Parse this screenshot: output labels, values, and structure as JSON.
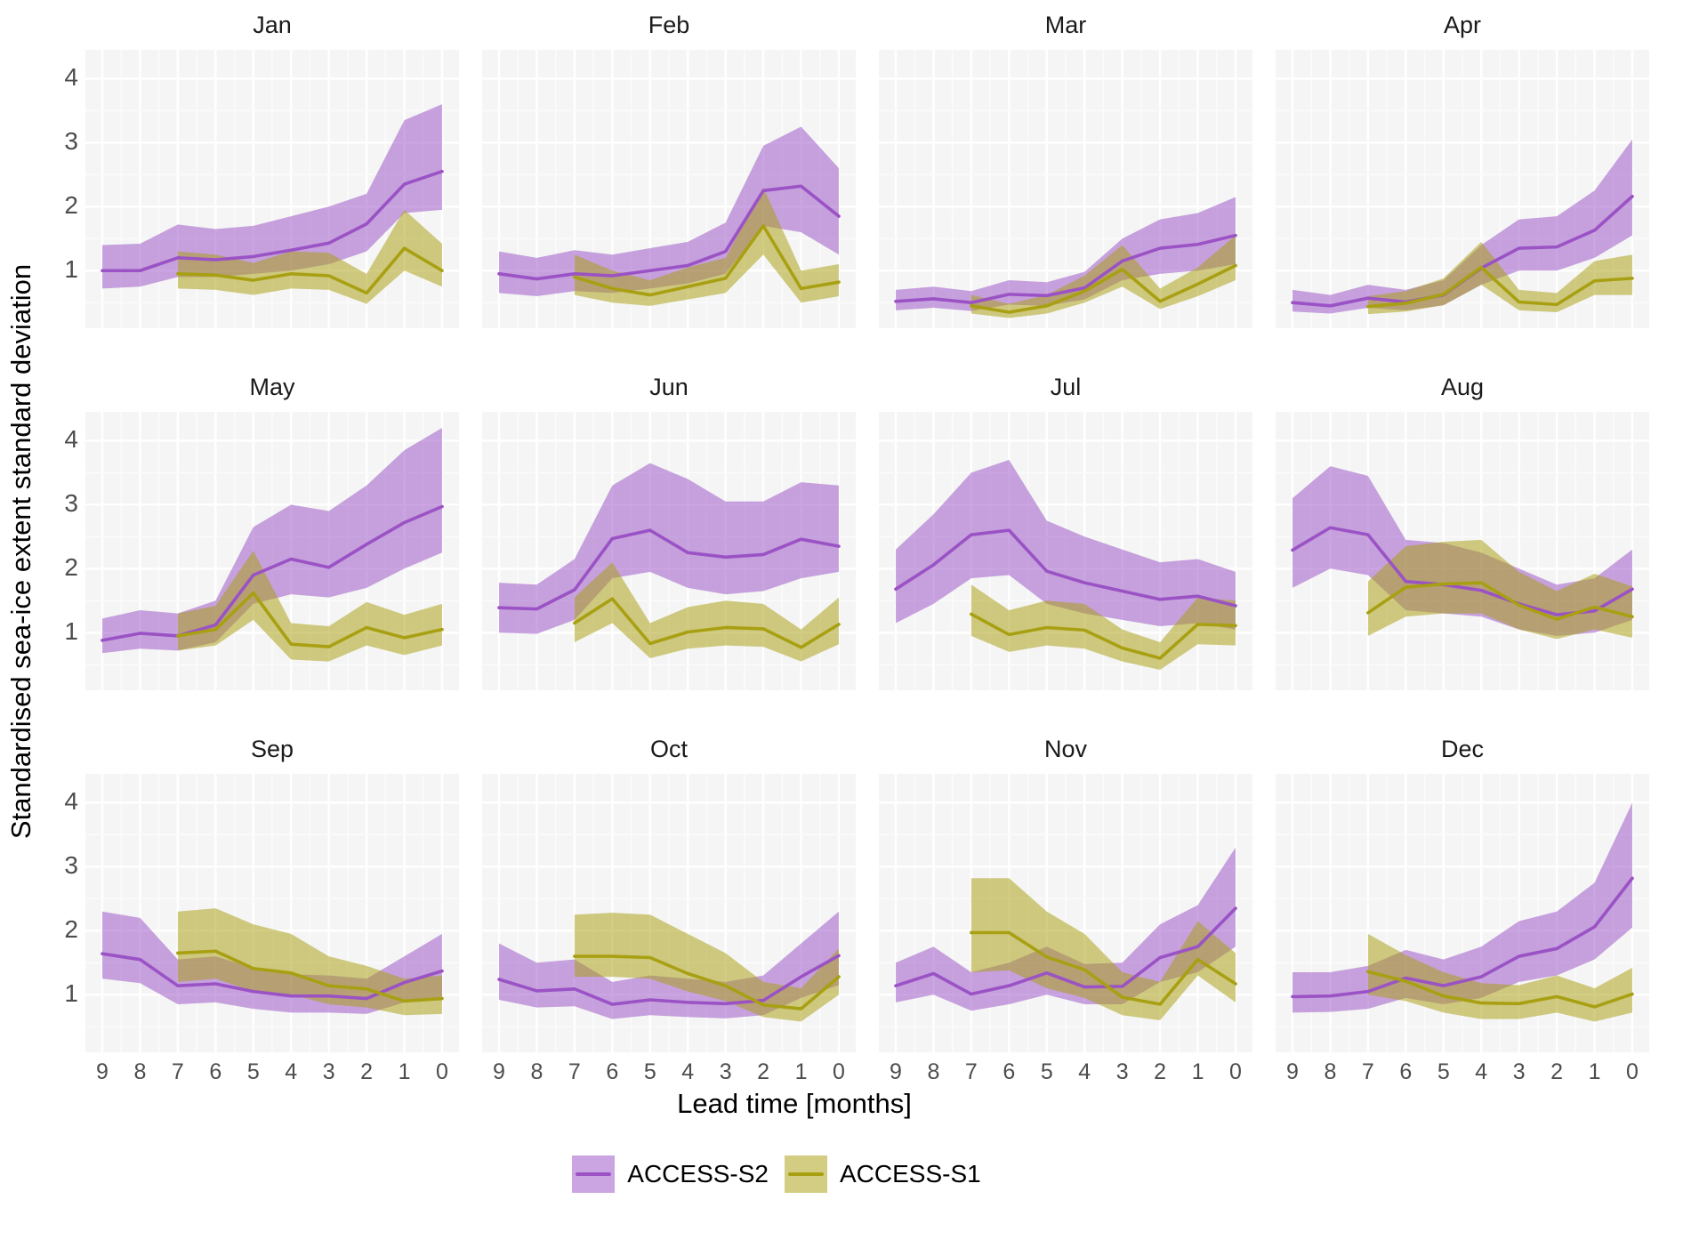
{
  "y_axis_title": "Standardised sea-ice extent standard deviation",
  "x_axis_title": "Lead time [months]",
  "legend": {
    "items": [
      {
        "label": "ACCESS-S2",
        "line_color": "#9a52c5",
        "fill_color": "#cfa6e6"
      },
      {
        "label": "ACCESS-S1",
        "line_color": "#a8a012",
        "fill_color": "#d8ce7f"
      }
    ]
  },
  "style": {
    "panel_bg": "#f5f5f5",
    "grid_major": "#ffffff",
    "grid_minor": "#fbfbfb",
    "ribbon_alpha": 0.52
  },
  "chart_data": {
    "type": "line",
    "x_ticks": [
      9,
      8,
      7,
      6,
      5,
      4,
      3,
      2,
      1,
      0
    ],
    "y_ticks": [
      4,
      3,
      2,
      1
    ],
    "ylim": [
      0.1,
      4.45
    ],
    "xlabel": "Lead time [months]",
    "ylabel": "Standardised sea-ice extent standard deviation",
    "legend_entries": [
      "ACCESS-S2",
      "ACCESS-S1"
    ],
    "series_note": "s2 = ACCESS-S2 (leads 9..0); s1 = ACCESS-S1 (leads 7..0); v=mean line, lo/up=ribbon bounds",
    "facets": [
      {
        "month": "Jan",
        "s2": {
          "leads": [
            9,
            8,
            7,
            6,
            5,
            4,
            3,
            2,
            1,
            0
          ],
          "v": [
            1.0,
            1.0,
            1.2,
            1.17,
            1.22,
            1.32,
            1.43,
            1.73,
            2.35,
            2.55
          ],
          "lo": [
            0.72,
            0.75,
            0.9,
            0.9,
            0.95,
            1.0,
            1.1,
            1.3,
            1.9,
            1.95
          ],
          "up": [
            1.4,
            1.42,
            1.72,
            1.65,
            1.7,
            1.85,
            2.0,
            2.2,
            3.35,
            3.6
          ]
        },
        "s1": {
          "leads": [
            7,
            6,
            5,
            4,
            3,
            2,
            1,
            0
          ],
          "v": [
            0.95,
            0.93,
            0.85,
            0.95,
            0.92,
            0.65,
            1.35,
            1.0
          ],
          "lo": [
            0.72,
            0.7,
            0.62,
            0.72,
            0.7,
            0.48,
            1.0,
            0.75
          ],
          "up": [
            1.3,
            1.25,
            1.12,
            1.3,
            1.28,
            0.95,
            1.95,
            1.42
          ]
        }
      },
      {
        "month": "Feb",
        "s2": {
          "leads": [
            9,
            8,
            7,
            6,
            5,
            4,
            3,
            2,
            1,
            0
          ],
          "v": [
            0.95,
            0.87,
            0.95,
            0.92,
            1.0,
            1.08,
            1.3,
            2.25,
            2.32,
            1.85
          ],
          "lo": [
            0.65,
            0.6,
            0.68,
            0.65,
            0.72,
            0.8,
            0.95,
            1.7,
            1.6,
            1.25
          ],
          "up": [
            1.3,
            1.2,
            1.32,
            1.25,
            1.35,
            1.45,
            1.75,
            2.95,
            3.25,
            2.6
          ]
        },
        "s1": {
          "leads": [
            7,
            6,
            5,
            4,
            3,
            2,
            1,
            0
          ],
          "v": [
            0.9,
            0.72,
            0.62,
            0.75,
            0.88,
            1.7,
            0.72,
            0.82
          ],
          "lo": [
            0.62,
            0.5,
            0.45,
            0.55,
            0.65,
            1.25,
            0.5,
            0.6
          ],
          "up": [
            1.25,
            1.0,
            0.85,
            1.05,
            1.2,
            2.3,
            1.0,
            1.1
          ]
        }
      },
      {
        "month": "Mar",
        "s2": {
          "leads": [
            9,
            8,
            7,
            6,
            5,
            4,
            3,
            2,
            1,
            0
          ],
          "v": [
            0.52,
            0.56,
            0.5,
            0.63,
            0.61,
            0.73,
            1.15,
            1.35,
            1.41,
            1.55
          ],
          "lo": [
            0.38,
            0.42,
            0.37,
            0.47,
            0.45,
            0.55,
            0.85,
            0.95,
            1.0,
            1.1
          ],
          "up": [
            0.7,
            0.75,
            0.68,
            0.85,
            0.82,
            0.98,
            1.5,
            1.8,
            1.9,
            2.15
          ]
        },
        "s1": {
          "leads": [
            7,
            6,
            5,
            4,
            3,
            2,
            1,
            0
          ],
          "v": [
            0.45,
            0.35,
            0.45,
            0.68,
            1.02,
            0.52,
            0.79,
            1.08
          ],
          "lo": [
            0.33,
            0.26,
            0.33,
            0.5,
            0.75,
            0.4,
            0.6,
            0.85
          ],
          "up": [
            0.62,
            0.48,
            0.62,
            0.92,
            1.4,
            0.72,
            1.05,
            1.55
          ]
        }
      },
      {
        "month": "Apr",
        "s2": {
          "leads": [
            9,
            8,
            7,
            6,
            5,
            4,
            3,
            2,
            1,
            0
          ],
          "v": [
            0.5,
            0.45,
            0.57,
            0.51,
            0.62,
            1.04,
            1.35,
            1.37,
            1.63,
            2.16
          ],
          "lo": [
            0.36,
            0.33,
            0.42,
            0.38,
            0.46,
            0.78,
            1.0,
            1.0,
            1.2,
            1.55
          ],
          "up": [
            0.7,
            0.62,
            0.78,
            0.7,
            0.85,
            1.4,
            1.8,
            1.85,
            2.25,
            3.05
          ]
        },
        "s1": {
          "leads": [
            7,
            6,
            5,
            4,
            3,
            2,
            1,
            0
          ],
          "v": [
            0.44,
            0.49,
            0.63,
            1.05,
            0.51,
            0.47,
            0.84,
            0.88
          ],
          "lo": [
            0.32,
            0.36,
            0.46,
            0.78,
            0.38,
            0.35,
            0.62,
            0.62
          ],
          "up": [
            0.6,
            0.68,
            0.88,
            1.45,
            0.7,
            0.65,
            1.15,
            1.25
          ]
        }
      },
      {
        "month": "May",
        "s2": {
          "leads": [
            9,
            8,
            7,
            6,
            5,
            4,
            3,
            2,
            1,
            0
          ],
          "v": [
            0.88,
            0.99,
            0.95,
            1.12,
            1.9,
            2.15,
            2.02,
            2.38,
            2.72,
            2.97
          ],
          "lo": [
            0.68,
            0.75,
            0.72,
            0.85,
            1.45,
            1.6,
            1.55,
            1.7,
            2.0,
            2.25
          ],
          "up": [
            1.22,
            1.35,
            1.3,
            1.5,
            2.65,
            3.0,
            2.9,
            3.3,
            3.85,
            4.2
          ]
        },
        "s1": {
          "leads": [
            7,
            6,
            5,
            4,
            3,
            2,
            1,
            0
          ],
          "v": [
            0.95,
            1.05,
            1.62,
            0.82,
            0.78,
            1.08,
            0.92,
            1.05
          ],
          "lo": [
            0.72,
            0.8,
            1.2,
            0.58,
            0.55,
            0.8,
            0.65,
            0.8
          ],
          "up": [
            1.3,
            1.42,
            2.28,
            1.15,
            1.1,
            1.48,
            1.28,
            1.45
          ]
        }
      },
      {
        "month": "Jun",
        "s2": {
          "leads": [
            9,
            8,
            7,
            6,
            5,
            4,
            3,
            2,
            1,
            0
          ],
          "v": [
            1.39,
            1.37,
            1.67,
            2.47,
            2.6,
            2.25,
            2.18,
            2.22,
            2.46,
            2.35
          ],
          "lo": [
            1.0,
            0.98,
            1.2,
            1.85,
            1.95,
            1.7,
            1.6,
            1.65,
            1.85,
            1.95
          ],
          "up": [
            1.78,
            1.75,
            2.15,
            3.3,
            3.65,
            3.4,
            3.05,
            3.05,
            3.35,
            3.3
          ]
        },
        "s1": {
          "leads": [
            7,
            6,
            5,
            4,
            3,
            2,
            1,
            0
          ],
          "v": [
            1.15,
            1.53,
            0.83,
            1.01,
            1.08,
            1.06,
            0.77,
            1.13
          ],
          "lo": [
            0.85,
            1.15,
            0.6,
            0.75,
            0.8,
            0.78,
            0.55,
            0.82
          ],
          "up": [
            1.55,
            2.1,
            1.15,
            1.4,
            1.5,
            1.45,
            1.05,
            1.55
          ]
        }
      },
      {
        "month": "Jul",
        "s2": {
          "leads": [
            9,
            8,
            7,
            6,
            5,
            4,
            3,
            2,
            1,
            0
          ],
          "v": [
            1.68,
            2.06,
            2.53,
            2.6,
            1.96,
            1.78,
            1.65,
            1.52,
            1.57,
            1.42
          ],
          "lo": [
            1.15,
            1.45,
            1.85,
            1.9,
            1.45,
            1.3,
            1.2,
            1.1,
            1.15,
            1.05
          ],
          "up": [
            2.3,
            2.85,
            3.5,
            3.7,
            2.75,
            2.5,
            2.3,
            2.1,
            2.15,
            1.95
          ]
        },
        "s1": {
          "leads": [
            7,
            6,
            5,
            4,
            3,
            2,
            1,
            0
          ],
          "v": [
            1.29,
            0.97,
            1.08,
            1.04,
            0.76,
            0.6,
            1.13,
            1.11
          ],
          "lo": [
            0.95,
            0.7,
            0.8,
            0.75,
            0.55,
            0.42,
            0.82,
            0.8
          ],
          "up": [
            1.75,
            1.35,
            1.5,
            1.45,
            1.05,
            0.85,
            1.55,
            1.5
          ]
        }
      },
      {
        "month": "Aug",
        "s2": {
          "leads": [
            9,
            8,
            7,
            6,
            5,
            4,
            3,
            2,
            1,
            0
          ],
          "v": [
            2.29,
            2.64,
            2.53,
            1.8,
            1.75,
            1.66,
            1.45,
            1.28,
            1.34,
            1.68
          ],
          "lo": [
            1.7,
            2.0,
            1.9,
            1.35,
            1.3,
            1.25,
            1.05,
            0.95,
            1.0,
            1.2
          ],
          "up": [
            3.1,
            3.6,
            3.45,
            2.45,
            2.4,
            2.25,
            2.0,
            1.75,
            1.85,
            2.3
          ]
        },
        "s1": {
          "leads": [
            7,
            6,
            5,
            4,
            3,
            2,
            1,
            0
          ],
          "v": [
            1.31,
            1.71,
            1.76,
            1.78,
            1.43,
            1.21,
            1.4,
            1.25
          ],
          "lo": [
            0.95,
            1.25,
            1.3,
            1.3,
            1.05,
            0.9,
            1.05,
            0.92
          ],
          "up": [
            1.8,
            2.35,
            2.42,
            2.45,
            1.95,
            1.65,
            1.92,
            1.72
          ]
        }
      },
      {
        "month": "Sep",
        "s2": {
          "leads": [
            9,
            8,
            7,
            6,
            5,
            4,
            3,
            2,
            1,
            0
          ],
          "v": [
            1.64,
            1.55,
            1.14,
            1.17,
            1.05,
            0.98,
            0.98,
            0.94,
            1.19,
            1.37
          ],
          "lo": [
            1.25,
            1.18,
            0.85,
            0.88,
            0.78,
            0.72,
            0.72,
            0.7,
            0.88,
            0.95
          ],
          "up": [
            2.3,
            2.2,
            1.55,
            1.6,
            1.42,
            1.32,
            1.3,
            1.25,
            1.6,
            1.95
          ]
        },
        "s1": {
          "leads": [
            7,
            6,
            5,
            4,
            3,
            2,
            1,
            0
          ],
          "v": [
            1.65,
            1.68,
            1.41,
            1.34,
            1.14,
            1.09,
            0.9,
            0.94
          ],
          "lo": [
            1.2,
            1.25,
            1.05,
            1.0,
            0.85,
            0.8,
            0.68,
            0.7
          ],
          "up": [
            2.3,
            2.35,
            2.1,
            1.95,
            1.6,
            1.45,
            1.25,
            1.3
          ]
        }
      },
      {
        "month": "Oct",
        "s2": {
          "leads": [
            9,
            8,
            7,
            6,
            5,
            4,
            3,
            2,
            1,
            0
          ],
          "v": [
            1.24,
            1.06,
            1.09,
            0.85,
            0.92,
            0.88,
            0.86,
            0.91,
            1.28,
            1.61
          ],
          "lo": [
            0.92,
            0.8,
            0.82,
            0.62,
            0.68,
            0.65,
            0.63,
            0.68,
            0.95,
            1.15
          ],
          "up": [
            1.8,
            1.5,
            1.55,
            1.2,
            1.3,
            1.25,
            1.2,
            1.3,
            1.8,
            2.3
          ]
        },
        "s1": {
          "leads": [
            7,
            6,
            5,
            4,
            3,
            2,
            1,
            0
          ],
          "v": [
            1.6,
            1.6,
            1.58,
            1.33,
            1.14,
            0.84,
            0.78,
            1.28
          ],
          "lo": [
            1.28,
            1.28,
            1.25,
            1.05,
            0.9,
            0.65,
            0.58,
            1.0
          ],
          "up": [
            2.25,
            2.28,
            2.25,
            1.95,
            1.65,
            1.2,
            1.1,
            1.72
          ]
        }
      },
      {
        "month": "Nov",
        "s2": {
          "leads": [
            9,
            8,
            7,
            6,
            5,
            4,
            3,
            2,
            1,
            0
          ],
          "v": [
            1.14,
            1.33,
            1.01,
            1.14,
            1.34,
            1.12,
            1.13,
            1.58,
            1.75,
            2.35
          ],
          "lo": [
            0.88,
            1.0,
            0.75,
            0.85,
            1.0,
            0.85,
            0.85,
            1.2,
            1.35,
            1.75
          ],
          "up": [
            1.5,
            1.75,
            1.35,
            1.5,
            1.75,
            1.48,
            1.5,
            2.1,
            2.4,
            3.3
          ]
        },
        "s1": {
          "leads": [
            7,
            6,
            5,
            4,
            3,
            2,
            1,
            0
          ],
          "v": [
            1.97,
            1.97,
            1.59,
            1.39,
            0.96,
            0.85,
            1.55,
            1.17
          ],
          "lo": [
            1.35,
            1.38,
            1.1,
            0.95,
            0.68,
            0.6,
            1.3,
            0.88
          ],
          "up": [
            2.82,
            2.82,
            2.3,
            1.95,
            1.35,
            1.2,
            2.15,
            1.65
          ]
        }
      },
      {
        "month": "Dec",
        "s2": {
          "leads": [
            9,
            8,
            7,
            6,
            5,
            4,
            3,
            2,
            1,
            0
          ],
          "v": [
            0.97,
            0.98,
            1.05,
            1.26,
            1.14,
            1.28,
            1.6,
            1.72,
            2.06,
            2.82
          ],
          "lo": [
            0.72,
            0.73,
            0.78,
            0.95,
            0.85,
            0.95,
            1.2,
            1.3,
            1.55,
            2.05
          ],
          "up": [
            1.35,
            1.35,
            1.45,
            1.7,
            1.55,
            1.75,
            2.15,
            2.3,
            2.75,
            4.0
          ]
        },
        "s1": {
          "leads": [
            7,
            6,
            5,
            4,
            3,
            2,
            1,
            0
          ],
          "v": [
            1.36,
            1.21,
            0.98,
            0.87,
            0.86,
            0.97,
            0.81,
            1.01
          ],
          "lo": [
            1.0,
            0.9,
            0.72,
            0.62,
            0.62,
            0.72,
            0.58,
            0.72
          ],
          "up": [
            1.95,
            1.62,
            1.35,
            1.18,
            1.15,
            1.3,
            1.1,
            1.42
          ]
        }
      }
    ]
  }
}
